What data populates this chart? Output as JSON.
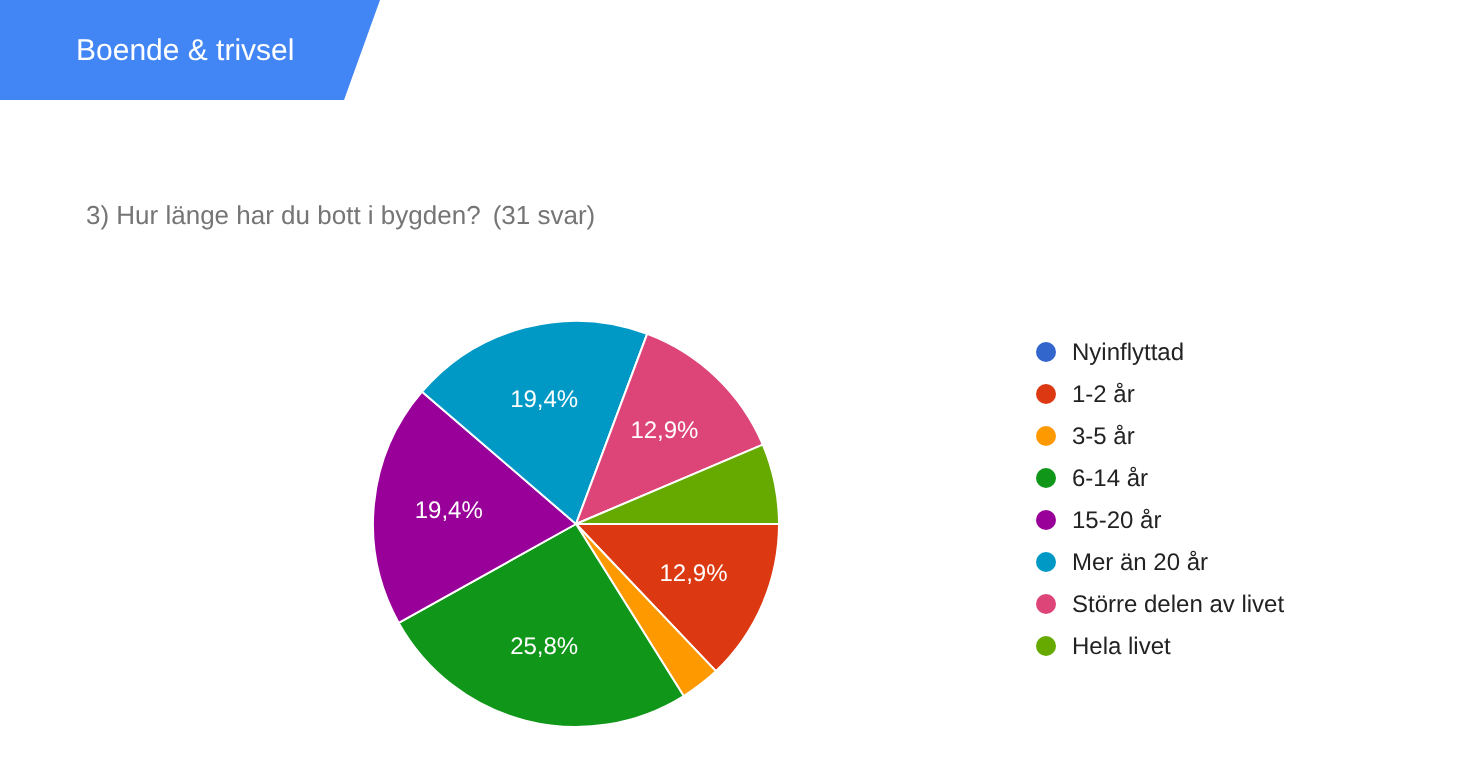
{
  "chart_data": {
    "type": "pie",
    "title": "3) Hur länge har du bott i bygden?",
    "subtitle": "(31 svar)",
    "annotations": [
      "Boende & trivsel"
    ],
    "categories": [
      "Nyinflyttad",
      "1-2 år",
      "3-5 år",
      "6-14 år",
      "15-20 år",
      "Mer än 20 år",
      "Större delen av livet",
      "Hela livet"
    ],
    "values": [
      0,
      12.9,
      3.2,
      25.8,
      19.4,
      19.4,
      12.9,
      6.4
    ],
    "value_labels": [
      null,
      "12,9%",
      null,
      "25,8%",
      "19,4%",
      "19,4%",
      "12,9%",
      null
    ],
    "colors": [
      "#3366cc",
      "#dc3912",
      "#ff9900",
      "#109618",
      "#990099",
      "#0099c6",
      "#dd4477",
      "#66aa00"
    ],
    "legend": "right"
  }
}
